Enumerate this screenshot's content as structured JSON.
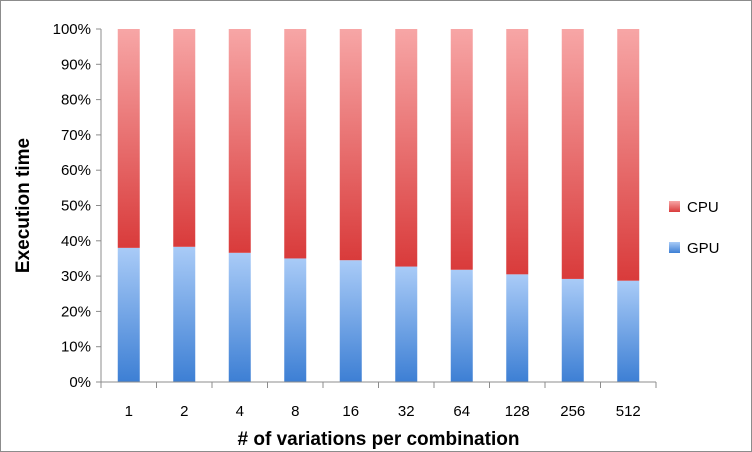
{
  "chart_data": {
    "type": "bar",
    "stacked": true,
    "normalized": true,
    "categories": [
      "1",
      "2",
      "4",
      "8",
      "16",
      "32",
      "64",
      "128",
      "256",
      "512"
    ],
    "series": [
      {
        "name": "GPU",
        "values": [
          38,
          38.3,
          36.6,
          35,
          34.5,
          32.7,
          31.8,
          30.5,
          29.2,
          28.7
        ],
        "color": "#5a8fd6"
      },
      {
        "name": "CPU",
        "values": [
          62,
          61.7,
          63.4,
          65,
          65.5,
          67.3,
          68.2,
          69.5,
          70.8,
          71.3
        ],
        "color": "#e05a5a"
      }
    ],
    "xlabel": "# of variations per combination",
    "ylabel": "Execution time",
    "ylim": [
      0,
      100
    ],
    "yticks": [
      "0%",
      "10%",
      "20%",
      "30%",
      "40%",
      "50%",
      "60%",
      "70%",
      "80%",
      "90%",
      "100%"
    ],
    "grid": false,
    "legend": {
      "position": "right",
      "entries": [
        "CPU",
        "GPU"
      ]
    }
  }
}
